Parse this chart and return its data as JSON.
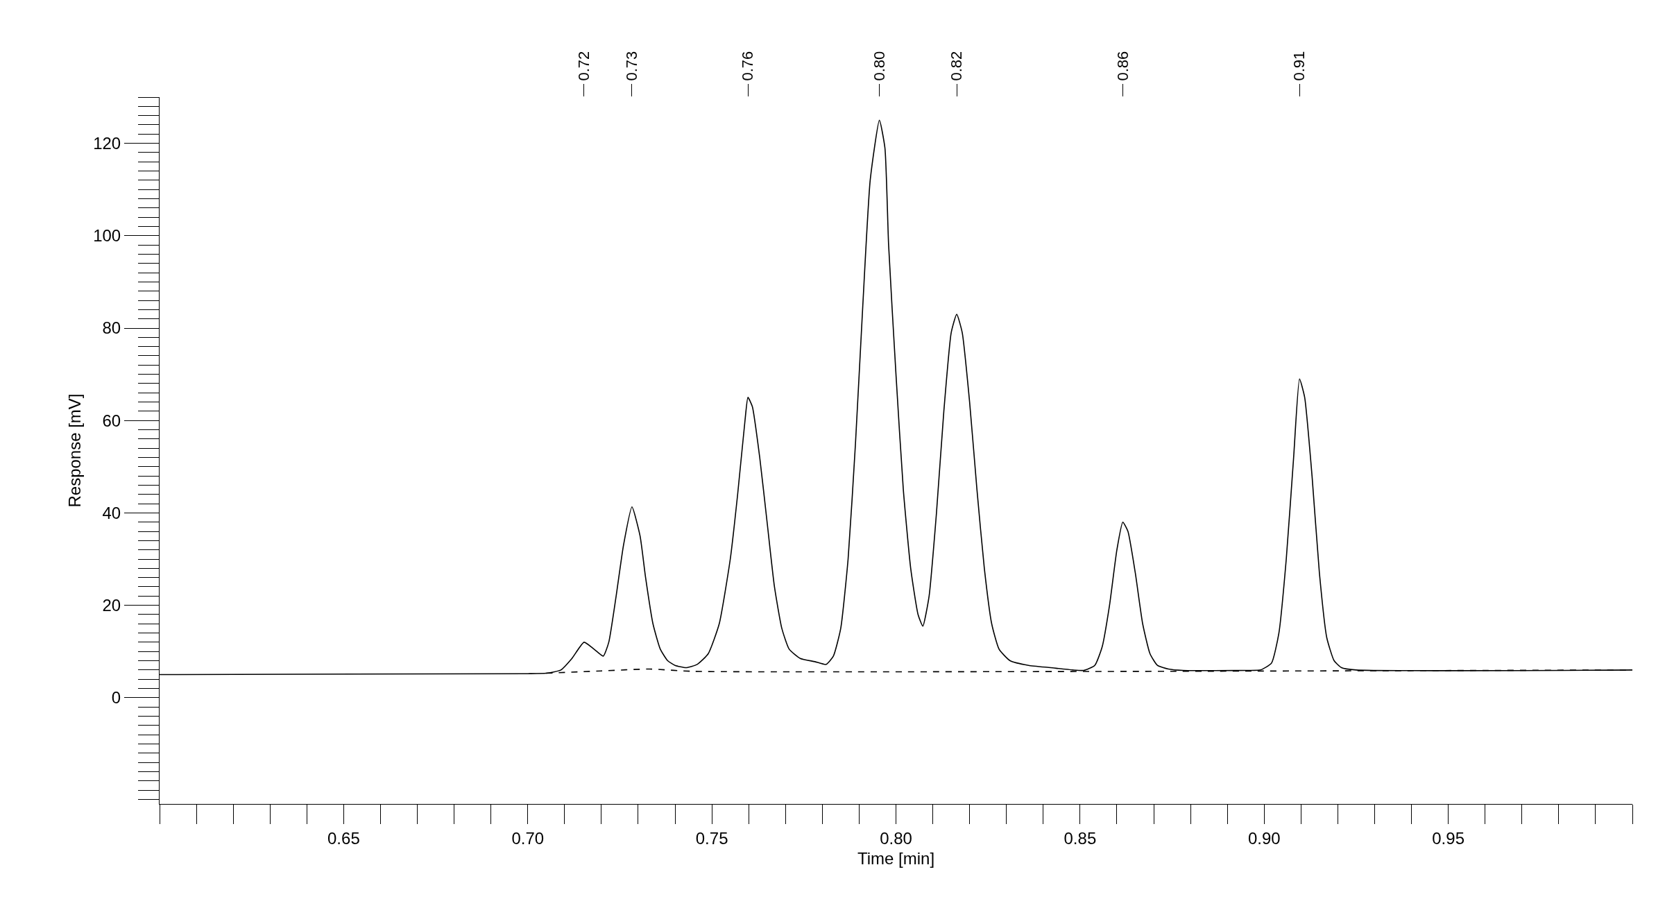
{
  "chart_data": {
    "type": "line",
    "xlabel": "Time [min]",
    "ylabel": "Response [mV]",
    "xlim": [
      0.6,
      1.0
    ],
    "xticks": [
      0.65,
      {
        "value": 0.7,
        "label": "0.70"
      },
      0.75,
      {
        "value": 0.8,
        "label": "0.80"
      },
      0.85,
      {
        "value": 0.9,
        "label": "0.90"
      },
      0.95
    ],
    "ylim": [
      -23,
      130
    ],
    "yticks": [
      0,
      20,
      40,
      60,
      80,
      100,
      120
    ],
    "x2lim": [
      0.6,
      1.0
    ],
    "x2ticks": [
      {
        "value": 0.7153,
        "label": "0.72"
      },
      {
        "value": 0.7283,
        "label": "0.73"
      },
      {
        "value": 0.7598,
        "label": "0.76"
      },
      {
        "value": 0.7955,
        "label": "0.80"
      },
      {
        "value": 0.8165,
        "label": "0.82"
      },
      {
        "value": 0.8616,
        "label": "0.86"
      },
      {
        "value": 0.9096,
        "label": "0.91"
      }
    ],
    "marker": "none",
    "series": [
      {
        "color": "#000000",
        "line_style": "solid",
        "x": [
          0.6,
          0.7,
          0.705,
          0.709,
          0.712,
          0.7153,
          0.718,
          0.7205,
          0.722,
          0.724,
          0.726,
          0.7283,
          0.7305,
          0.732,
          0.734,
          0.736,
          0.738,
          0.74,
          0.743,
          0.746,
          0.749,
          0.752,
          0.755,
          0.757,
          0.759,
          0.7598,
          0.761,
          0.763,
          0.765,
          0.767,
          0.769,
          0.771,
          0.774,
          0.778,
          0.781,
          0.783,
          0.785,
          0.787,
          0.789,
          0.791,
          0.793,
          0.7955,
          0.797,
          0.798,
          0.8,
          0.802,
          0.804,
          0.806,
          0.8073,
          0.809,
          0.811,
          0.813,
          0.815,
          0.8165,
          0.818,
          0.82,
          0.822,
          0.824,
          0.826,
          0.828,
          0.831,
          0.836,
          0.842,
          0.848,
          0.851,
          0.854,
          0.856,
          0.858,
          0.86,
          0.8616,
          0.863,
          0.865,
          0.867,
          0.869,
          0.871,
          0.874,
          0.878,
          0.895,
          0.899,
          0.902,
          0.904,
          0.906,
          0.908,
          0.9096,
          0.911,
          0.913,
          0.915,
          0.917,
          0.919,
          0.921,
          0.925,
          1.0
        ],
        "values": [
          5.0,
          5.2,
          5.3,
          6.0,
          8.5,
          12.0,
          10.5,
          9.0,
          12,
          22,
          33,
          41.3,
          35,
          26,
          16,
          10.5,
          8,
          7,
          6.5,
          7.2,
          9.5,
          16,
          30,
          44,
          60,
          65,
          63,
          52,
          38,
          24,
          15,
          10.5,
          8.5,
          7.8,
          7.2,
          9,
          15,
          30,
          55,
          85,
          112,
          125,
          119,
          98,
          70,
          45,
          28,
          18,
          15.5,
          22,
          40,
          62,
          79,
          83,
          79,
          64,
          45,
          28,
          16,
          10.5,
          8,
          7,
          6.5,
          6.0,
          5.9,
          7,
          11,
          20,
          32,
          38,
          36,
          27,
          16,
          9.5,
          7,
          6.2,
          5.9,
          5.9,
          6.0,
          7.5,
          14,
          30,
          52,
          69,
          65,
          48,
          27,
          13,
          8,
          6.5,
          6.0,
          6.0
        ]
      },
      {
        "color": "#000000",
        "line_style": "dashed",
        "x": [
          0.705,
          0.72,
          0.733,
          0.745,
          1.0
        ],
        "values": [
          5.3,
          5.8,
          6.2,
          5.7,
          6.0
        ]
      }
    ]
  }
}
